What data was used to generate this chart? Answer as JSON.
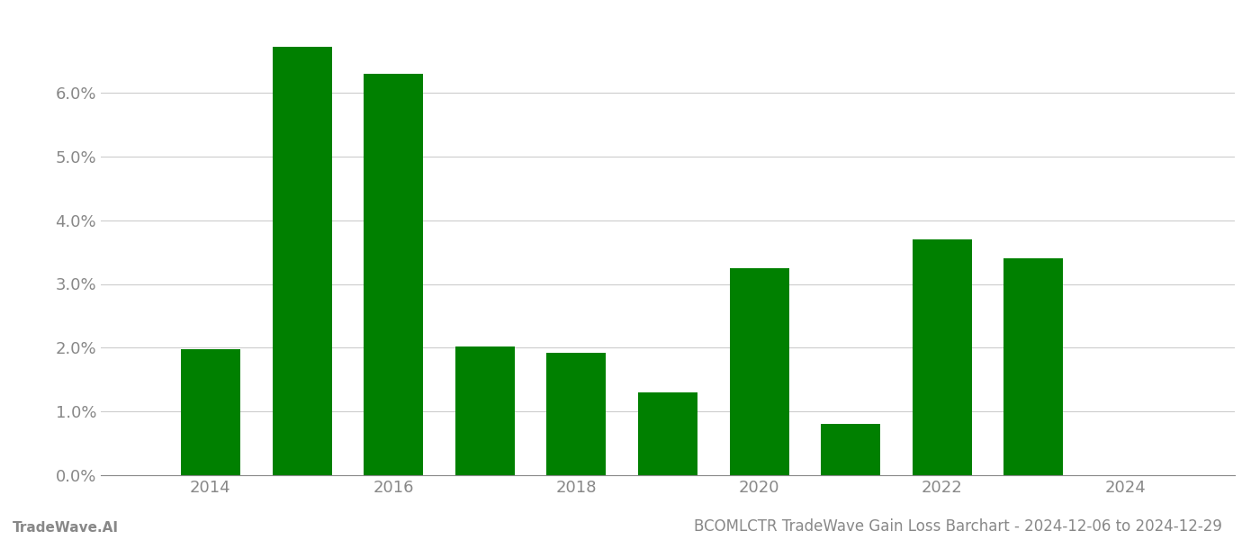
{
  "years": [
    2014,
    2015,
    2016,
    2017,
    2018,
    2019,
    2020,
    2021,
    2022,
    2023
  ],
  "values": [
    0.0197,
    0.0672,
    0.063,
    0.0202,
    0.0192,
    0.013,
    0.0325,
    0.008,
    0.037,
    0.034
  ],
  "bar_color": "#008000",
  "background_color": "#ffffff",
  "grid_color": "#cccccc",
  "title": "BCOMLCTR TradeWave Gain Loss Barchart - 2024-12-06 to 2024-12-29",
  "footer_left": "TradeWave.AI",
  "ylim_min": 0.0,
  "ylim_max": 0.072,
  "ytick_values": [
    0.0,
    0.01,
    0.02,
    0.03,
    0.04,
    0.05,
    0.06
  ],
  "xtick_labels": [
    "2014",
    "2016",
    "2018",
    "2020",
    "2022",
    "2024"
  ],
  "xtick_positions": [
    2014,
    2016,
    2018,
    2020,
    2022,
    2024
  ],
  "axis_label_color": "#888888",
  "bar_width": 0.65,
  "title_fontsize": 12,
  "footer_fontsize": 11,
  "tick_fontsize": 13
}
